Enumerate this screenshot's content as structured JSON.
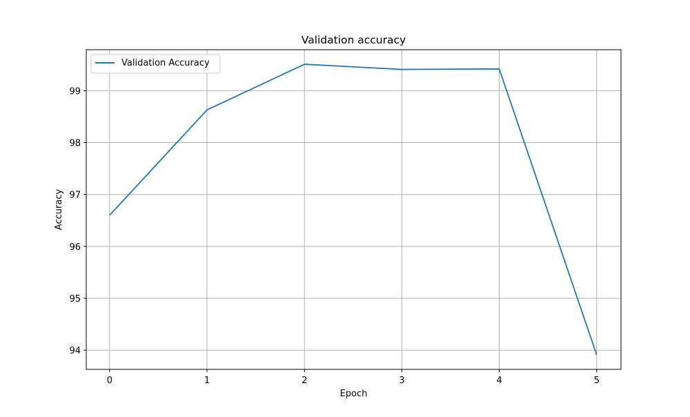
{
  "chart_data": {
    "type": "line",
    "title": "Validation accuracy",
    "xlabel": "Epoch",
    "ylabel": "Accuracy",
    "x": [
      0,
      1,
      2,
      3,
      4,
      5
    ],
    "series": [
      {
        "name": "Validation Accuracy",
        "color": "#1f77b4",
        "values": [
          96.6,
          98.63,
          99.51,
          99.41,
          99.42,
          93.91
        ]
      }
    ],
    "xticks": [
      0,
      1,
      2,
      3,
      4,
      5
    ],
    "yticks": [
      94,
      95,
      96,
      97,
      98,
      99
    ],
    "xtick_labels": [
      "0",
      "1",
      "2",
      "3",
      "4",
      "5"
    ],
    "ytick_labels": [
      "94",
      "95",
      "96",
      "97",
      "98",
      "99"
    ],
    "xlim": [
      -0.24,
      5.25
    ],
    "ylim": [
      93.63,
      99.79
    ],
    "grid": true,
    "legend": "upper-left"
  }
}
